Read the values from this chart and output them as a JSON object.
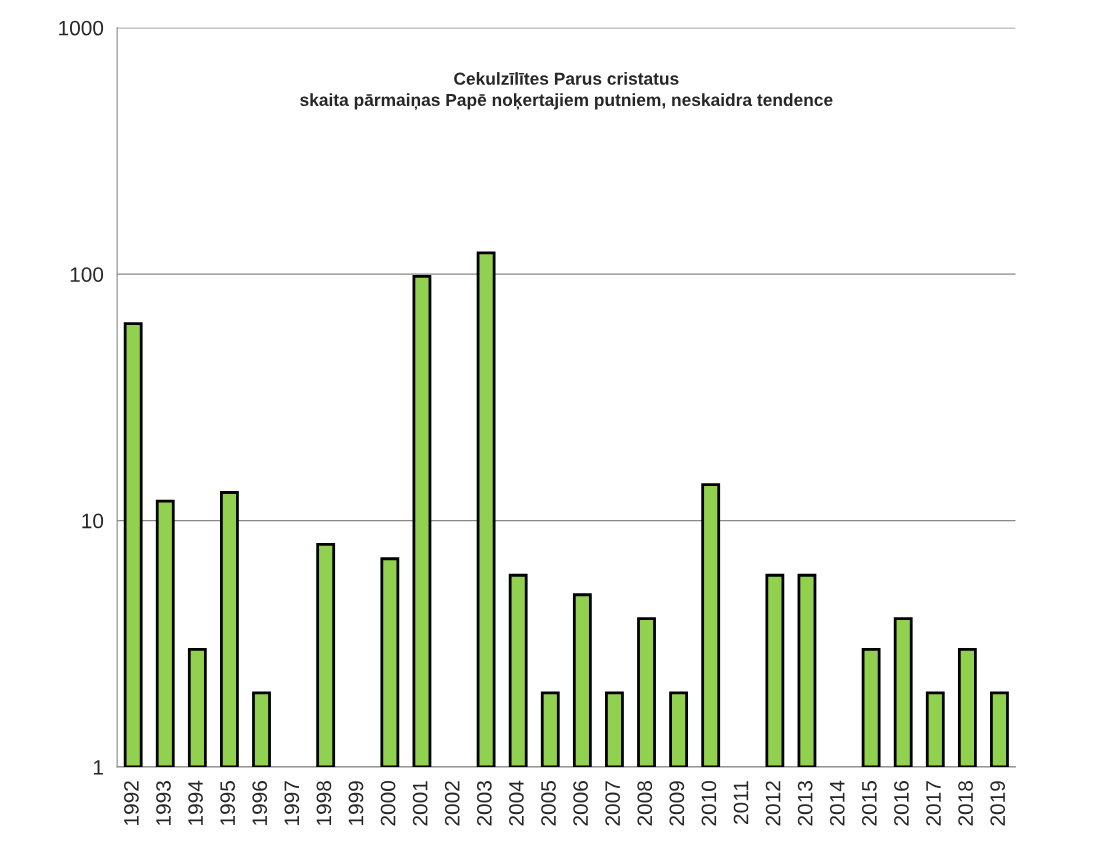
{
  "chart_data": {
    "type": "bar",
    "title": "Cekulzīlītes Parus cristatus\nskaita pārmaiņas Papē noķertajiem putniem, neskaidra tendence",
    "categories": [
      "1992",
      "1993",
      "1994",
      "1995",
      "1996",
      "1997",
      "1998",
      "1999",
      "2000",
      "2001",
      "2002",
      "2003",
      "2004",
      "2005",
      "2006",
      "2007",
      "2008",
      "2009",
      "2010",
      "2011",
      "2012",
      "2013",
      "2014",
      "2015",
      "2016",
      "2017",
      "2018",
      "2019"
    ],
    "values": [
      63,
      12,
      3,
      13,
      2,
      null,
      8,
      null,
      7,
      98,
      null,
      122,
      6,
      2,
      5,
      2,
      4,
      2,
      14,
      null,
      6,
      6,
      null,
      3,
      4,
      2,
      3,
      2
    ],
    "color": "#92d050",
    "log": true,
    "ylim": [
      1,
      1000
    ],
    "yticks": [
      1,
      10,
      100,
      1000
    ],
    "grid": "y"
  }
}
